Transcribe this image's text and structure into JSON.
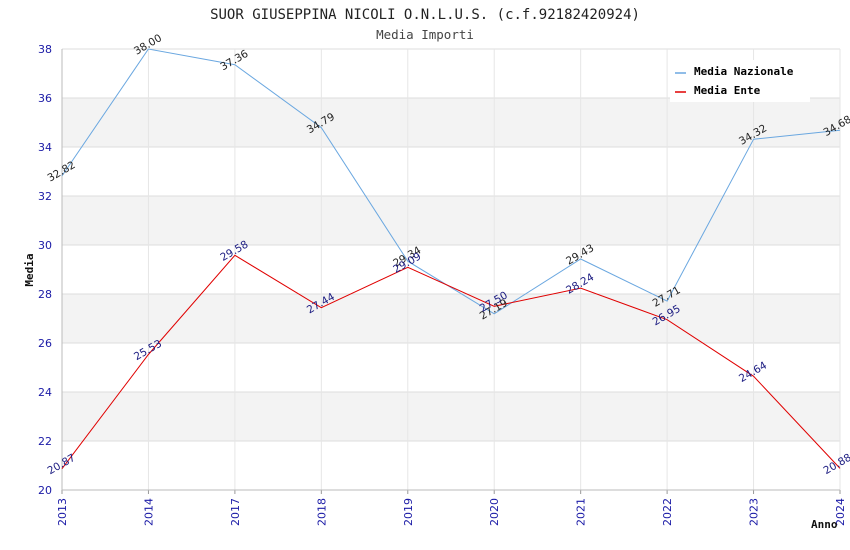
{
  "chart_data": {
    "type": "line",
    "title": "SUOR GIUSEPPINA NICOLI O.N.L.U.S. (c.f.92182420924)",
    "subtitle": "Media Importi",
    "xlabel": "Anno",
    "ylabel": "Media",
    "ylim": [
      20,
      38
    ],
    "yticks": [
      "20",
      "22",
      "24",
      "26",
      "28",
      "30",
      "32",
      "34",
      "36",
      "38"
    ],
    "categories": [
      "2013",
      "2014",
      "2017",
      "2018",
      "2019",
      "2020",
      "2021",
      "2022",
      "2023",
      "2024"
    ],
    "series": [
      {
        "name": "Media Nazionale",
        "color": "#6aa7e0",
        "values": [
          32.82,
          38.0,
          37.36,
          34.79,
          29.34,
          27.19,
          29.43,
          27.71,
          34.32,
          34.68
        ],
        "labels": [
          "32.82",
          "38.00",
          "37.36",
          "34.79",
          "29.34",
          "27.19",
          "29.43",
          "27.71",
          "34.32",
          "34.68"
        ]
      },
      {
        "name": "Media Ente",
        "color": "#e00000",
        "values": [
          20.87,
          25.53,
          29.58,
          27.44,
          29.09,
          27.5,
          28.24,
          26.95,
          24.64,
          20.88
        ],
        "labels": [
          "20.87",
          "25.53",
          "29.58",
          "27.44",
          "29.09",
          "27.50",
          "28.24",
          "26.95",
          "24.64",
          "20.88"
        ]
      }
    ],
    "legend": "top-right",
    "grid": true
  }
}
